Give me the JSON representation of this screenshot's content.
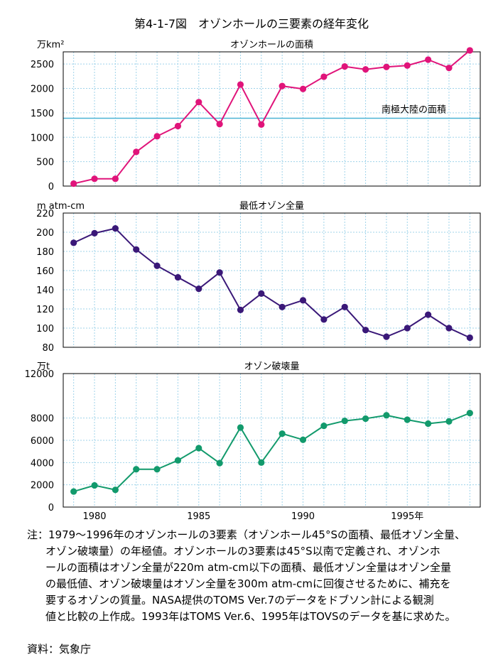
{
  "figure_title": "第4-1-7図　オゾンホールの三要素の経年変化",
  "x_labels": [
    "1980",
    "1985",
    "1990",
    "1995年"
  ],
  "chart_data": [
    {
      "type": "line",
      "title": "オゾンホールの面積",
      "ylabel": "万km²",
      "ylim": [
        0,
        2750
      ],
      "yticks": [
        0,
        500,
        1000,
        1500,
        2000,
        2500
      ],
      "x": [
        1979,
        1980,
        1981,
        1982,
        1983,
        1984,
        1985,
        1986,
        1987,
        1988,
        1989,
        1990,
        1991,
        1992,
        1993,
        1994,
        1995,
        1996,
        1997,
        1998
      ],
      "values": [
        50,
        150,
        150,
        700,
        1020,
        1230,
        1720,
        1270,
        2080,
        1260,
        2050,
        1990,
        2240,
        2450,
        2390,
        2440,
        2470,
        2590,
        2420,
        2780
      ],
      "color": "#e0147a",
      "reference_line": {
        "value": 1390,
        "label": "南極大陸の面積",
        "color": "#4ab4d4"
      }
    },
    {
      "type": "line",
      "title": "最低オゾン全量",
      "ylabel": "m atm-cm",
      "ylim": [
        80,
        220
      ],
      "yticks": [
        80,
        100,
        120,
        140,
        160,
        180,
        200,
        220
      ],
      "x": [
        1979,
        1980,
        1981,
        1982,
        1983,
        1984,
        1985,
        1986,
        1987,
        1988,
        1989,
        1990,
        1991,
        1992,
        1993,
        1994,
        1995,
        1996,
        1997,
        1998
      ],
      "values": [
        189,
        199,
        204,
        182,
        165,
        153,
        141,
        158,
        119,
        136,
        122,
        129,
        109,
        122,
        98,
        91,
        100,
        114,
        100,
        90
      ],
      "color": "#3a1878"
    },
    {
      "type": "line",
      "title": "オゾン破壊量",
      "ylabel": "万t",
      "ylim": [
        0,
        12000
      ],
      "yticks": [
        0,
        2000,
        4000,
        6000,
        8000,
        12000
      ],
      "x": [
        1979,
        1980,
        1981,
        1982,
        1983,
        1984,
        1985,
        1986,
        1987,
        1988,
        1989,
        1990,
        1991,
        1992,
        1993,
        1994,
        1995,
        1996,
        1997,
        1998
      ],
      "values": [
        1400,
        1950,
        1550,
        3400,
        3400,
        4200,
        5300,
        3950,
        7150,
        4000,
        6600,
        6050,
        7300,
        7750,
        7950,
        8250,
        7850,
        7500,
        7700,
        8450
      ],
      "color": "#129a6c"
    }
  ],
  "note_lines": [
    "注：1979〜1996年のオゾンホールの3要素（オゾンホール45°Sの面積、最低オゾン全量、",
    "オゾン破壊量）の年極値。オゾンホールの3要素は45°S以南で定義され、オゾンホ",
    "ールの面積はオゾン全量が220m atm-cm以下の面積、最低オゾン全量はオゾン全量",
    "の最低値、オゾン破壊量はオゾン全量を300m atm-cmに回復させるために、補充を",
    "要するオゾンの質量。NASA提供のTOMS Ver.7のデータをドブソン計による観測",
    "値と比較の上作成。1993年はTOMS Ver.6、1995年はTOVSのデータを基に求めた。"
  ],
  "source": "資料：気象庁"
}
